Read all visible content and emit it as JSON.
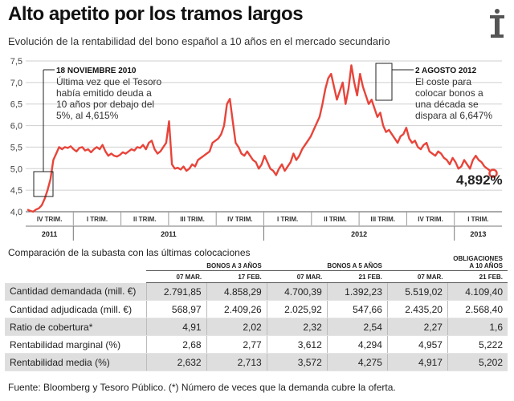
{
  "header": {
    "title": "Alto apetito por los tramos largos",
    "subtitle": "Evolución de la rentabilidad del bono español a 10 años en el mercado secundario"
  },
  "logo_icon": "tower-emblem-icon",
  "colors": {
    "line": "#e8443a",
    "grid": "#cfcfcf",
    "shade": "#dedede"
  },
  "chart_data": {
    "type": "line",
    "ylim": [
      4.0,
      7.5
    ],
    "y_ticks": [
      "4,0",
      "4,5",
      "5,0",
      "5,5",
      "6,0",
      "6,5",
      "7,0",
      "7,5"
    ],
    "grid": true,
    "quarters": [
      "IV TRIM.",
      "I TRIM.",
      "II TRIM.",
      "III TRIM.",
      "IV TRIM.",
      "I TRIM.",
      "II TRIM.",
      "III TRIM.",
      "IV TRIM.",
      "I TRIM."
    ],
    "years": [
      "2011",
      "2011",
      "2012",
      "2013"
    ],
    "series": [
      {
        "values": [
          4.05,
          4.02,
          4.0,
          4.05,
          4.08,
          4.15,
          4.3,
          4.5,
          4.75,
          5.2,
          5.35,
          5.5,
          5.45,
          5.5,
          5.48,
          5.52,
          5.45,
          5.4,
          5.48,
          5.5,
          5.42,
          5.45,
          5.38,
          5.45,
          5.5,
          5.45,
          5.55,
          5.4,
          5.3,
          5.35,
          5.3,
          5.28,
          5.32,
          5.38,
          5.35,
          5.4,
          5.45,
          5.42,
          5.5,
          5.48,
          5.55,
          5.45,
          5.6,
          5.65,
          5.45,
          5.35,
          5.4,
          5.5,
          5.6,
          6.1,
          5.1,
          5.0,
          5.02,
          4.98,
          5.05,
          4.95,
          5.0,
          5.1,
          5.05,
          5.2,
          5.25,
          5.3,
          5.35,
          5.4,
          5.6,
          5.65,
          5.7,
          5.8,
          6.0,
          6.5,
          6.62,
          6.1,
          5.6,
          5.5,
          5.35,
          5.3,
          5.4,
          5.3,
          5.2,
          5.15,
          5.0,
          5.1,
          5.3,
          5.15,
          5.0,
          4.95,
          4.85,
          5.0,
          5.1,
          4.95,
          5.05,
          5.15,
          5.35,
          5.2,
          5.3,
          5.45,
          5.55,
          5.65,
          5.75,
          5.9,
          6.05,
          6.2,
          6.5,
          6.85,
          7.1,
          7.2,
          6.9,
          6.6,
          6.8,
          7.0,
          6.5,
          6.85,
          7.4,
          7.0,
          6.7,
          7.2,
          6.9,
          6.7,
          6.5,
          6.6,
          6.4,
          6.2,
          6.3,
          6.0,
          5.85,
          5.9,
          5.8,
          5.7,
          5.6,
          5.75,
          5.8,
          5.95,
          5.7,
          5.6,
          5.65,
          5.5,
          5.45,
          5.55,
          5.6,
          5.4,
          5.35,
          5.3,
          5.4,
          5.35,
          5.25,
          5.2,
          5.1,
          5.25,
          5.15,
          5.0,
          5.05,
          5.2,
          5.1,
          5.0,
          5.2,
          5.3,
          5.2,
          5.15,
          5.05,
          5.0,
          4.95,
          4.892
        ]
      }
    ],
    "annotations": [
      {
        "heading": "18 NOVIEMBRE 2010",
        "lines": [
          "Última vez que el Tesoro",
          "había emitido deuda a",
          "10 años por debajo del",
          "5%, al 4,615%"
        ]
      },
      {
        "heading": "2 AGOSTO 2012",
        "lines": [
          "El coste para",
          "colocar bonos a",
          "una década se",
          "dispara al 6,647%"
        ]
      }
    ],
    "last_label": "4,892%"
  },
  "table": {
    "caption": "Comparación de la subasta con las últimas colocaciones",
    "groups": [
      "BONOS A 3 AÑOS",
      "BONOS A 5 AÑOS",
      "OBLIGACIONES",
      "A 10 AÑOS"
    ],
    "dates": [
      "07 MAR.",
      "17 FEB.",
      "07 MAR.",
      "21 FEB.",
      "07 MAR.",
      "21 FEB."
    ],
    "rows": [
      {
        "label": "Cantidad demandada (mill. €)",
        "values": [
          "2.791,85",
          "4.858,29",
          "4.700,39",
          "1.392,23",
          "5.519,02",
          "4.109,40"
        ]
      },
      {
        "label": "Cantidad adjudicada (mill. €)",
        "values": [
          "568,97",
          "2.409,26",
          "2.025,92",
          "547,66",
          "2.435,20",
          "2.568,40"
        ]
      },
      {
        "label": "Ratio de cobertura*",
        "values": [
          "4,91",
          "2,02",
          "2,32",
          "2,54",
          "2,27",
          "1,6"
        ]
      },
      {
        "label": "Rentabilidad marginal (%)",
        "values": [
          "2,68",
          "2,77",
          "3,612",
          "4,294",
          "4,957",
          "5,222"
        ]
      },
      {
        "label": "Rentabilidad media (%)",
        "values": [
          "2,632",
          "2,713",
          "3,572",
          "4,275",
          "4,917",
          "5,202"
        ]
      }
    ]
  },
  "footer": "Fuente: Bloomberg y Tesoro Público. (*) Número de veces que la demanda cubre la oferta."
}
